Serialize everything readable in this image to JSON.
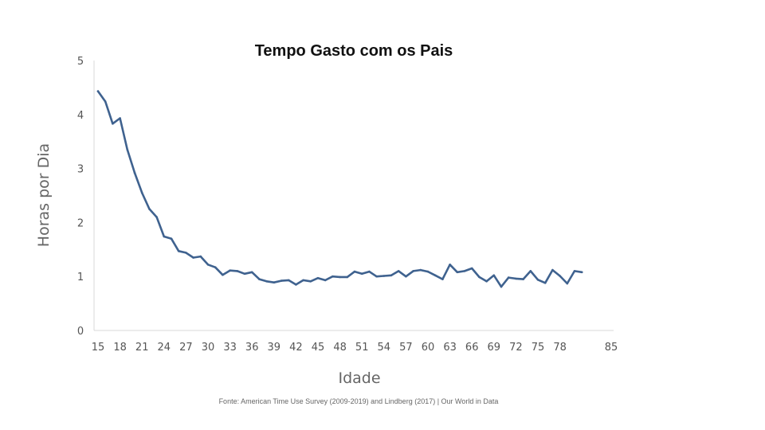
{
  "chart_data": {
    "type": "line",
    "title": "Tempo Gasto com os Pais",
    "xlabel": "Idade",
    "ylabel": "Horas por Dia",
    "source": "Fonte: American Time Use Survey (2009-2019) and Lindberg (2017) | Our World in Data",
    "xlim": [
      15,
      85
    ],
    "ylim": [
      0,
      5
    ],
    "x_ticks": [
      15,
      18,
      21,
      24,
      27,
      30,
      33,
      36,
      39,
      42,
      45,
      48,
      51,
      54,
      57,
      60,
      63,
      66,
      69,
      72,
      75,
      78,
      85
    ],
    "y_ticks": [
      0,
      1,
      2,
      3,
      4,
      5
    ],
    "grid": false,
    "line_color": "#3f628f",
    "series": [
      {
        "x": [
          15,
          16,
          17,
          18,
          19,
          20,
          21,
          22,
          23,
          24,
          25,
          26,
          27,
          28,
          29,
          30,
          31,
          32,
          33,
          34,
          35,
          36,
          37,
          38,
          39,
          40,
          41,
          42,
          43,
          44,
          45,
          46,
          47,
          48,
          49,
          50,
          51,
          52,
          53,
          54,
          55,
          56,
          57,
          58,
          59,
          60,
          61,
          62,
          63,
          64,
          65,
          66,
          67,
          68,
          69,
          70,
          71,
          72,
          73,
          74,
          75,
          76,
          77,
          78,
          79,
          80,
          81
        ],
        "values": [
          4.43,
          4.24,
          3.83,
          3.93,
          3.35,
          2.92,
          2.55,
          2.25,
          2.1,
          1.74,
          1.7,
          1.47,
          1.44,
          1.35,
          1.37,
          1.22,
          1.17,
          1.03,
          1.11,
          1.1,
          1.05,
          1.08,
          0.95,
          0.91,
          0.89,
          0.92,
          0.93,
          0.85,
          0.93,
          0.91,
          0.97,
          0.93,
          1.0,
          0.99,
          0.99,
          1.09,
          1.05,
          1.09,
          1.0,
          1.01,
          1.02,
          1.1,
          1.0,
          1.1,
          1.12,
          1.09,
          1.02,
          0.95,
          1.22,
          1.08,
          1.1,
          1.15,
          0.99,
          0.91,
          1.02,
          0.81,
          0.98,
          0.96,
          0.95,
          1.1,
          0.94,
          0.88,
          1.12,
          1.01,
          0.87,
          1.1,
          1.08
        ]
      }
    ]
  }
}
